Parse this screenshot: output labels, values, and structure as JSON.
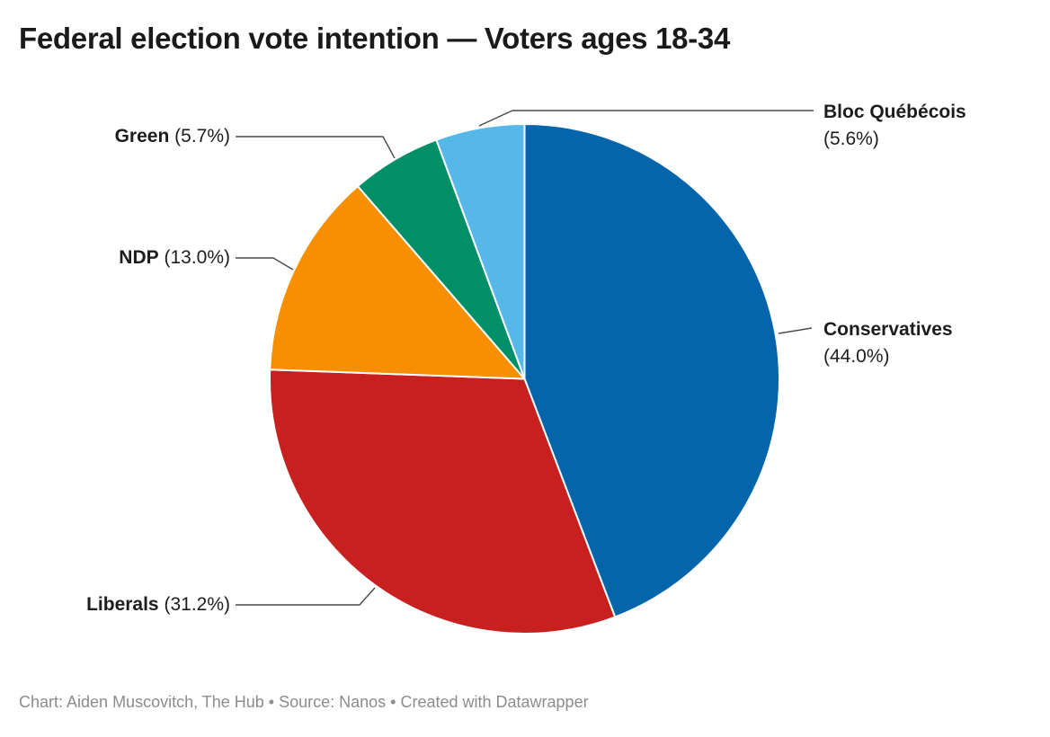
{
  "title": "Federal election vote intention — Voters ages 18-34",
  "footer": "Chart: Aiden Muscovitch, The Hub • Source: Nanos • Created with Datawrapper",
  "chart_data": {
    "type": "pie",
    "title": "Federal election vote intention — Voters ages 18-34",
    "categories": [
      "Conservatives",
      "Liberals",
      "NDP",
      "Green",
      "Bloc Québécois"
    ],
    "values": [
      44.0,
      31.2,
      13.0,
      5.7,
      5.6
    ],
    "unit": "%",
    "label_texts": [
      "(44.0%)",
      "(31.2%)",
      "(13.0%)",
      "(5.7%)",
      "(5.6%)"
    ],
    "colors": [
      "#0565ab",
      "#c7201f",
      "#f78f00",
      "#008f66",
      "#56b8e9"
    ],
    "slice_ids": [
      "conservatives",
      "liberals",
      "ndp",
      "green",
      "bloc-quebecois"
    ],
    "direction": "clockwise",
    "start_angle_deg": 0,
    "legend_position": "callout-labels",
    "slice_border_color": "#ffffff",
    "leader_line_color": "#4a4a4a"
  }
}
